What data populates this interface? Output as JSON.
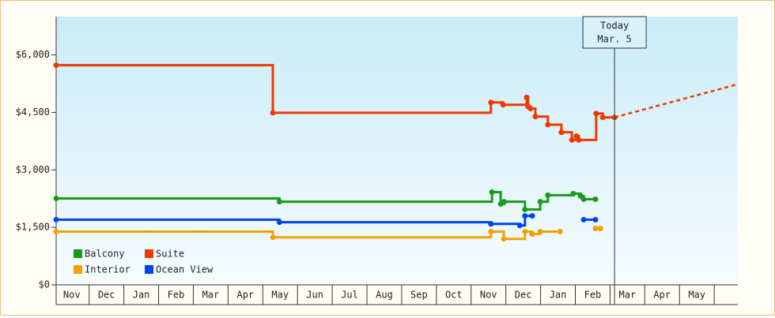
{
  "chart_data": {
    "type": "step-line",
    "xlim": [
      0.05,
      19.68
    ],
    "xticks": [
      {
        "value": 0.5,
        "label": "Nov"
      },
      {
        "value": 1.5,
        "label": "Dec"
      },
      {
        "value": 2.5,
        "label": "Jan"
      },
      {
        "value": 3.5,
        "label": "Feb"
      },
      {
        "value": 4.5,
        "label": "Mar"
      },
      {
        "value": 5.5,
        "label": "Apr"
      },
      {
        "value": 6.5,
        "label": "May"
      },
      {
        "value": 7.5,
        "label": "Jun"
      },
      {
        "value": 8.5,
        "label": "Jul"
      },
      {
        "value": 9.5,
        "label": "Aug"
      },
      {
        "value": 10.5,
        "label": "Sep"
      },
      {
        "value": 11.5,
        "label": "Oct"
      },
      {
        "value": 12.5,
        "label": "Nov"
      },
      {
        "value": 13.5,
        "label": "Dec"
      },
      {
        "value": 14.5,
        "label": "Jan"
      },
      {
        "value": 15.5,
        "label": "Feb"
      },
      {
        "value": 16.5,
        "label": "Mar"
      },
      {
        "value": 17.5,
        "label": "Apr"
      },
      {
        "value": 18.5,
        "label": "May"
      }
    ],
    "ylim": [
      0,
      7000
    ],
    "yticks": [
      {
        "value": 0,
        "label": "$0"
      },
      {
        "value": 1500,
        "label": "$1,500"
      },
      {
        "value": 3000,
        "label": "$3,000"
      },
      {
        "value": 4500,
        "label": "$4,500"
      },
      {
        "value": 6000,
        "label": "$6,000"
      }
    ],
    "legend": "bottom-left",
    "series": [
      {
        "name": "Balcony",
        "color": "#1a9a1a",
        "x": [
          0.05,
          6.48,
          12.6,
          12.85,
          12.95,
          13.55,
          13.99,
          14.21,
          14.94,
          15.15,
          15.24,
          15.58
        ],
        "values": [
          2255,
          2170,
          2420,
          2110,
          2170,
          1965,
          2170,
          2340,
          2380,
          2320,
          2235,
          2235
        ]
      },
      {
        "name": "Suite",
        "color": "#ee3a00",
        "x": [
          0.05,
          6.29,
          12.57,
          12.92,
          13.6,
          13.64,
          13.71,
          13.85,
          14.21,
          14.6,
          14.9,
          15.03,
          15.1,
          15.6,
          15.79,
          16.13
        ],
        "values": [
          5730,
          4490,
          4760,
          4700,
          4890,
          4650,
          4600,
          4390,
          4180,
          3980,
          3780,
          3880,
          3780,
          4470,
          4370,
          4370
        ],
        "projection": {
          "x": [
            16.13,
            19.68
          ],
          "values": [
            4370,
            5235
          ]
        }
      },
      {
        "name": "Interior",
        "color": "#f5a000",
        "x": [
          0.05,
          6.29,
          12.57,
          12.94,
          13.55,
          13.76,
          13.99,
          14.56,
          null,
          15.58,
          15.72
        ],
        "values": [
          1390,
          1240,
          1390,
          1200,
          1390,
          1325,
          1390,
          1390,
          null,
          1470,
          1470
        ]
      },
      {
        "name": "Ocean View",
        "color": "#0044ee",
        "x": [
          0.05,
          6.48,
          12.57,
          13.4,
          13.55,
          13.76,
          null,
          15.24,
          15.58
        ],
        "values": [
          1700,
          1635,
          1590,
          1550,
          1800,
          1800,
          null,
          1700,
          1700
        ]
      }
    ],
    "today": {
      "x": 16.13,
      "label": [
        "Today",
        "Mar. 5"
      ]
    }
  }
}
